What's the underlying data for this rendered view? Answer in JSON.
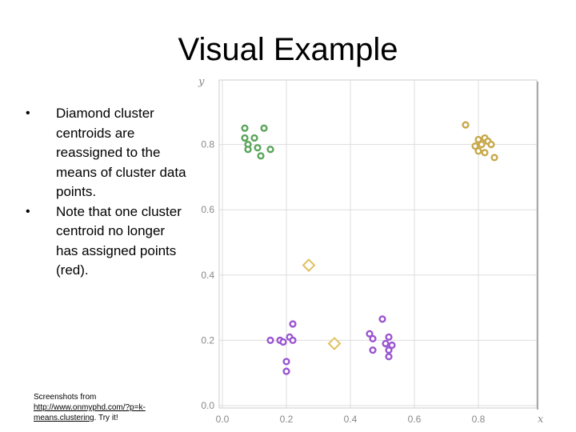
{
  "slide": {
    "title": "Visual Example",
    "bullets": [
      "Diamond cluster centroids are reassigned to the means of cluster data points.",
      "Note that one cluster centroid no longer has assigned points (red)."
    ],
    "bullet_char": "•",
    "footnote": {
      "prefix": "Screenshots from ",
      "link_text": "http://www.onmyphd.com/?p=k-means.clustering",
      "suffix": ". Try it!"
    }
  },
  "colors": {
    "green": "#5aa55a",
    "gold": "#c8a84a",
    "purple": "#9a55d0",
    "centroid": "#e0c060",
    "grid": "#dddddd",
    "axis_text": "#888888"
  },
  "chart_data": {
    "type": "scatter",
    "xlabel": "x",
    "ylabel": "y",
    "xlim": [
      0,
      1
    ],
    "ylim": [
      0,
      1
    ],
    "x_ticks": [
      0.0,
      0.2,
      0.4,
      0.6,
      0.8
    ],
    "y_ticks": [
      0.0,
      0.2,
      0.4,
      0.6,
      0.8
    ],
    "x_tick_labels": [
      "0.0",
      "0.2",
      "0.4",
      "0.6",
      "0.8"
    ],
    "y_tick_labels": [
      "0.0",
      "0.2",
      "0.4",
      "0.6",
      "0.8"
    ],
    "grid": true,
    "series": [
      {
        "color": "#5aa55a",
        "points": [
          [
            0.07,
            0.85
          ],
          [
            0.13,
            0.85
          ],
          [
            0.07,
            0.82
          ],
          [
            0.1,
            0.82
          ],
          [
            0.08,
            0.8
          ],
          [
            0.08,
            0.785
          ],
          [
            0.11,
            0.79
          ],
          [
            0.15,
            0.785
          ],
          [
            0.12,
            0.765
          ]
        ]
      },
      {
        "color": "#c8a84a",
        "points": [
          [
            0.76,
            0.86
          ],
          [
            0.8,
            0.815
          ],
          [
            0.82,
            0.82
          ],
          [
            0.83,
            0.81
          ],
          [
            0.79,
            0.795
          ],
          [
            0.81,
            0.8
          ],
          [
            0.84,
            0.8
          ],
          [
            0.8,
            0.78
          ],
          [
            0.82,
            0.775
          ],
          [
            0.85,
            0.76
          ]
        ]
      },
      {
        "color": "#9a55d0",
        "points": [
          [
            0.22,
            0.25
          ],
          [
            0.21,
            0.21
          ],
          [
            0.15,
            0.2
          ],
          [
            0.18,
            0.2
          ],
          [
            0.19,
            0.195
          ],
          [
            0.22,
            0.2
          ],
          [
            0.2,
            0.135
          ],
          [
            0.2,
            0.105
          ],
          [
            0.5,
            0.265
          ],
          [
            0.46,
            0.22
          ],
          [
            0.52,
            0.21
          ],
          [
            0.47,
            0.205
          ],
          [
            0.51,
            0.19
          ],
          [
            0.53,
            0.185
          ],
          [
            0.47,
            0.17
          ],
          [
            0.52,
            0.17
          ],
          [
            0.52,
            0.15
          ]
        ]
      }
    ],
    "centroids": [
      {
        "x": 0.27,
        "y": 0.43
      },
      {
        "x": 0.35,
        "y": 0.19
      }
    ]
  }
}
